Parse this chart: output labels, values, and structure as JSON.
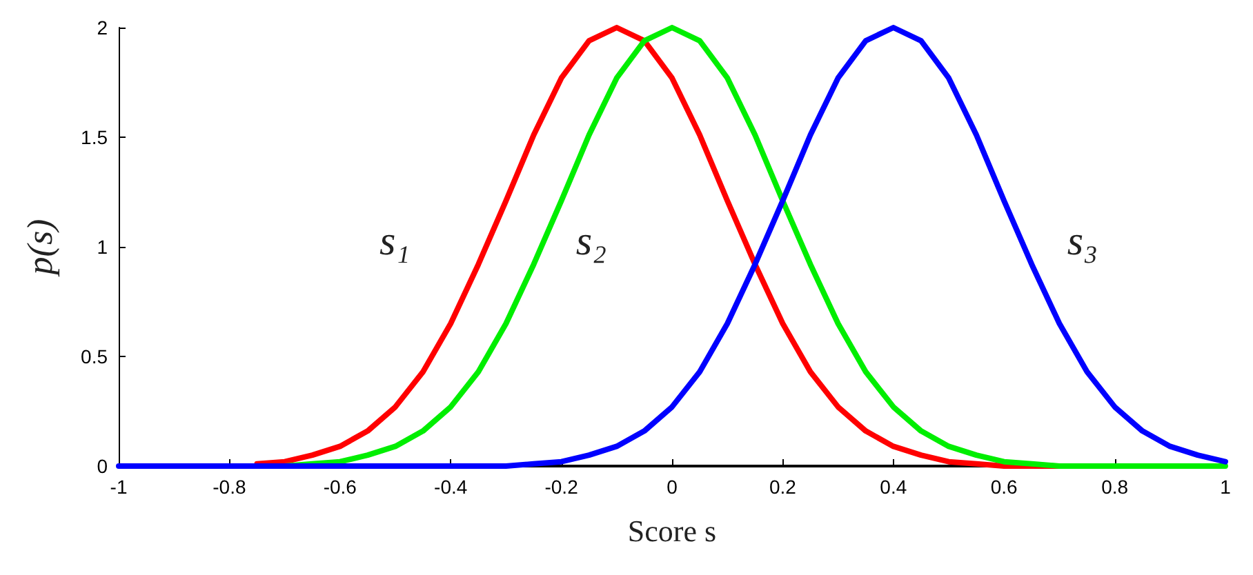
{
  "chart_data": {
    "type": "line",
    "xlabel": "Score s",
    "ylabel": "p(s)",
    "x": [
      -1,
      -0.95,
      -0.9,
      -0.85,
      -0.8,
      -0.75,
      -0.7,
      -0.65,
      -0.6,
      -0.55,
      -0.5,
      -0.45,
      -0.4,
      -0.35,
      -0.3,
      -0.25,
      -0.2,
      -0.15,
      -0.1,
      -0.05,
      0,
      0.05,
      0.1,
      0.15,
      0.2,
      0.25,
      0.3,
      0.35,
      0.4,
      0.45,
      0.5,
      0.55,
      0.6,
      0.65,
      0.7,
      0.75,
      0.8,
      0.85,
      0.9,
      0.95,
      1
    ],
    "series": [
      {
        "color": "#ff0000",
        "values": [
          null,
          null,
          null,
          null,
          null,
          0.01,
          0.02,
          0.05,
          0.09,
          0.16,
          0.27,
          0.43,
          0.65,
          0.92,
          1.21,
          1.51,
          1.77,
          1.94,
          2,
          1.94,
          1.77,
          1.51,
          1.21,
          0.92,
          0.65,
          0.43,
          0.27,
          0.16,
          0.09,
          0.05,
          0.02,
          0.01,
          0,
          0,
          0,
          0,
          null,
          null,
          null,
          null,
          null
        ]
      },
      {
        "color": "#00ee00",
        "values": [
          null,
          null,
          null,
          null,
          null,
          0,
          0,
          0.01,
          0.02,
          0.05,
          0.09,
          0.16,
          0.27,
          0.43,
          0.65,
          0.92,
          1.21,
          1.51,
          1.77,
          1.94,
          2,
          1.94,
          1.77,
          1.51,
          1.21,
          0.92,
          0.65,
          0.43,
          0.27,
          0.16,
          0.09,
          0.05,
          0.02,
          0.01,
          0,
          0,
          0,
          0,
          0,
          0,
          0
        ]
      },
      {
        "color": "#0000ff",
        "values": [
          0,
          0,
          0,
          0,
          0,
          0,
          0,
          0,
          0,
          0,
          0,
          0,
          0,
          0,
          0,
          0.01,
          0.02,
          0.05,
          0.09,
          0.16,
          0.27,
          0.43,
          0.65,
          0.92,
          1.21,
          1.51,
          1.77,
          1.94,
          2,
          1.94,
          1.77,
          1.51,
          1.21,
          0.92,
          0.65,
          0.43,
          0.27,
          0.16,
          0.09,
          0.05,
          0.02
        ]
      }
    ],
    "annotations": [
      "s₁",
      "s₂",
      "s₃"
    ],
    "xlim": [
      -1,
      1
    ],
    "xticks": [
      -1,
      -0.8,
      -0.6,
      -0.4,
      -0.2,
      0,
      0.2,
      0.4,
      0.6,
      0.8,
      1
    ],
    "ylim": [
      0,
      2
    ],
    "yticks": [
      0,
      0.5,
      1,
      1.5,
      2
    ],
    "grid": false,
    "marker": "none",
    "line_style": "solid"
  }
}
